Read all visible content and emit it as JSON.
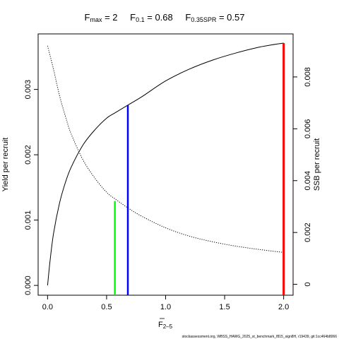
{
  "title": {
    "fmax": {
      "sym": "F",
      "sub": "max",
      "eq": " = 2"
    },
    "f01": {
      "sym": "F",
      "sub": "0.1",
      "eq": " = 0.68"
    },
    "fspr": {
      "sym": "F",
      "sub": "0.35SPR",
      "eq": " = 0.57"
    }
  },
  "footer": "stockassessment.org, WBSS_HAWG_2025_st_benchmark_f815_sign8H, r19439, git:1cc464b8066",
  "colors": {
    "yield_curve": "#000000",
    "ssb_curve": "#000000",
    "fmax_line": "#ff0000",
    "f01_line": "#0000ff",
    "fspr_line": "#00ff00"
  },
  "chart_data": {
    "type": "line",
    "xlabel": {
      "sym": "F",
      "sub": "2–5"
    },
    "ylabel_left": "Yield per recruit",
    "ylabel_right": "SSB per recruit",
    "xlim": [
      -0.08,
      2.08
    ],
    "ylim_left": [
      -0.00015,
      0.00385
    ],
    "ylim_right": [
      -0.00042,
      0.00966
    ],
    "x_ticks": [
      0.0,
      0.5,
      1.0,
      1.5,
      2.0
    ],
    "x_tick_labels": [
      "0.0",
      "0.5",
      "1.0",
      "1.5",
      "2.0"
    ],
    "y_left_ticks": [
      0.0,
      0.001,
      0.002,
      0.003
    ],
    "y_left_tick_labels": [
      "0.000",
      "0.001",
      "0.002",
      "0.003"
    ],
    "y_right_ticks": [
      0,
      0.002,
      0.004,
      0.006,
      0.008
    ],
    "y_right_tick_labels": [
      "0",
      "0.002",
      "0.004",
      "0.006",
      "0.008"
    ],
    "grid": false,
    "series": [
      {
        "axis": "left",
        "style": "solid",
        "x": [
          0.0,
          0.02,
          0.05,
          0.1,
          0.15,
          0.2,
          0.3,
          0.4,
          0.5,
          0.57,
          0.68,
          0.8,
          1.0,
          1.2,
          1.4,
          1.6,
          1.8,
          2.0
        ],
        "y": [
          0.0,
          0.00036,
          0.00079,
          0.00125,
          0.00157,
          0.00181,
          0.00215,
          0.00238,
          0.00256,
          0.00264,
          0.00276,
          0.00289,
          0.00313,
          0.00331,
          0.00345,
          0.00356,
          0.00365,
          0.00371
        ]
      },
      {
        "axis": "right",
        "style": "dotted",
        "x": [
          0.0,
          0.05,
          0.1,
          0.15,
          0.2,
          0.3,
          0.4,
          0.5,
          0.57,
          0.68,
          0.8,
          1.0,
          1.2,
          1.4,
          1.6,
          1.8,
          2.0
        ],
        "y": [
          0.0092,
          0.0083,
          0.0073,
          0.0065,
          0.0058,
          0.0048,
          0.0041,
          0.00355,
          0.0033,
          0.00295,
          0.00262,
          0.00218,
          0.00186,
          0.00164,
          0.00147,
          0.00134,
          0.00123
        ]
      }
    ],
    "reference_lines": [
      {
        "x": 0.57,
        "y_top": 0.00129,
        "color": "#00ff00"
      },
      {
        "x": 0.68,
        "y_top": 0.00276,
        "color": "#0000ff"
      },
      {
        "x": 2.0,
        "y_top": 0.00371,
        "color": "#ff0000"
      }
    ]
  }
}
